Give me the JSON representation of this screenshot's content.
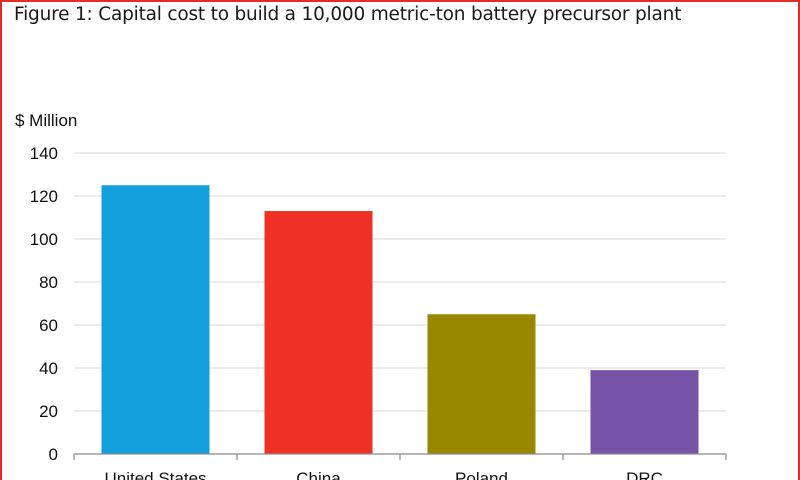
{
  "chart_data": {
    "type": "bar",
    "title": "Figure 1: Capital cost to build a 10,000 metric-ton battery precursor plant",
    "ylabel": "$ Million",
    "xlabel": "",
    "ylim": [
      0,
      140
    ],
    "yticks": [
      0,
      20,
      40,
      60,
      80,
      100,
      120,
      140
    ],
    "grid": true,
    "categories": [
      "United States",
      "China",
      "Poland",
      "DRC"
    ],
    "values": [
      125,
      113,
      65,
      39
    ],
    "colors": [
      "#139fdc",
      "#ee3124",
      "#9a8700",
      "#7653a6"
    ]
  },
  "colors": {
    "frame": "#e8292a",
    "grid": "#d9d9d9",
    "axis": "#8c8c8c"
  }
}
